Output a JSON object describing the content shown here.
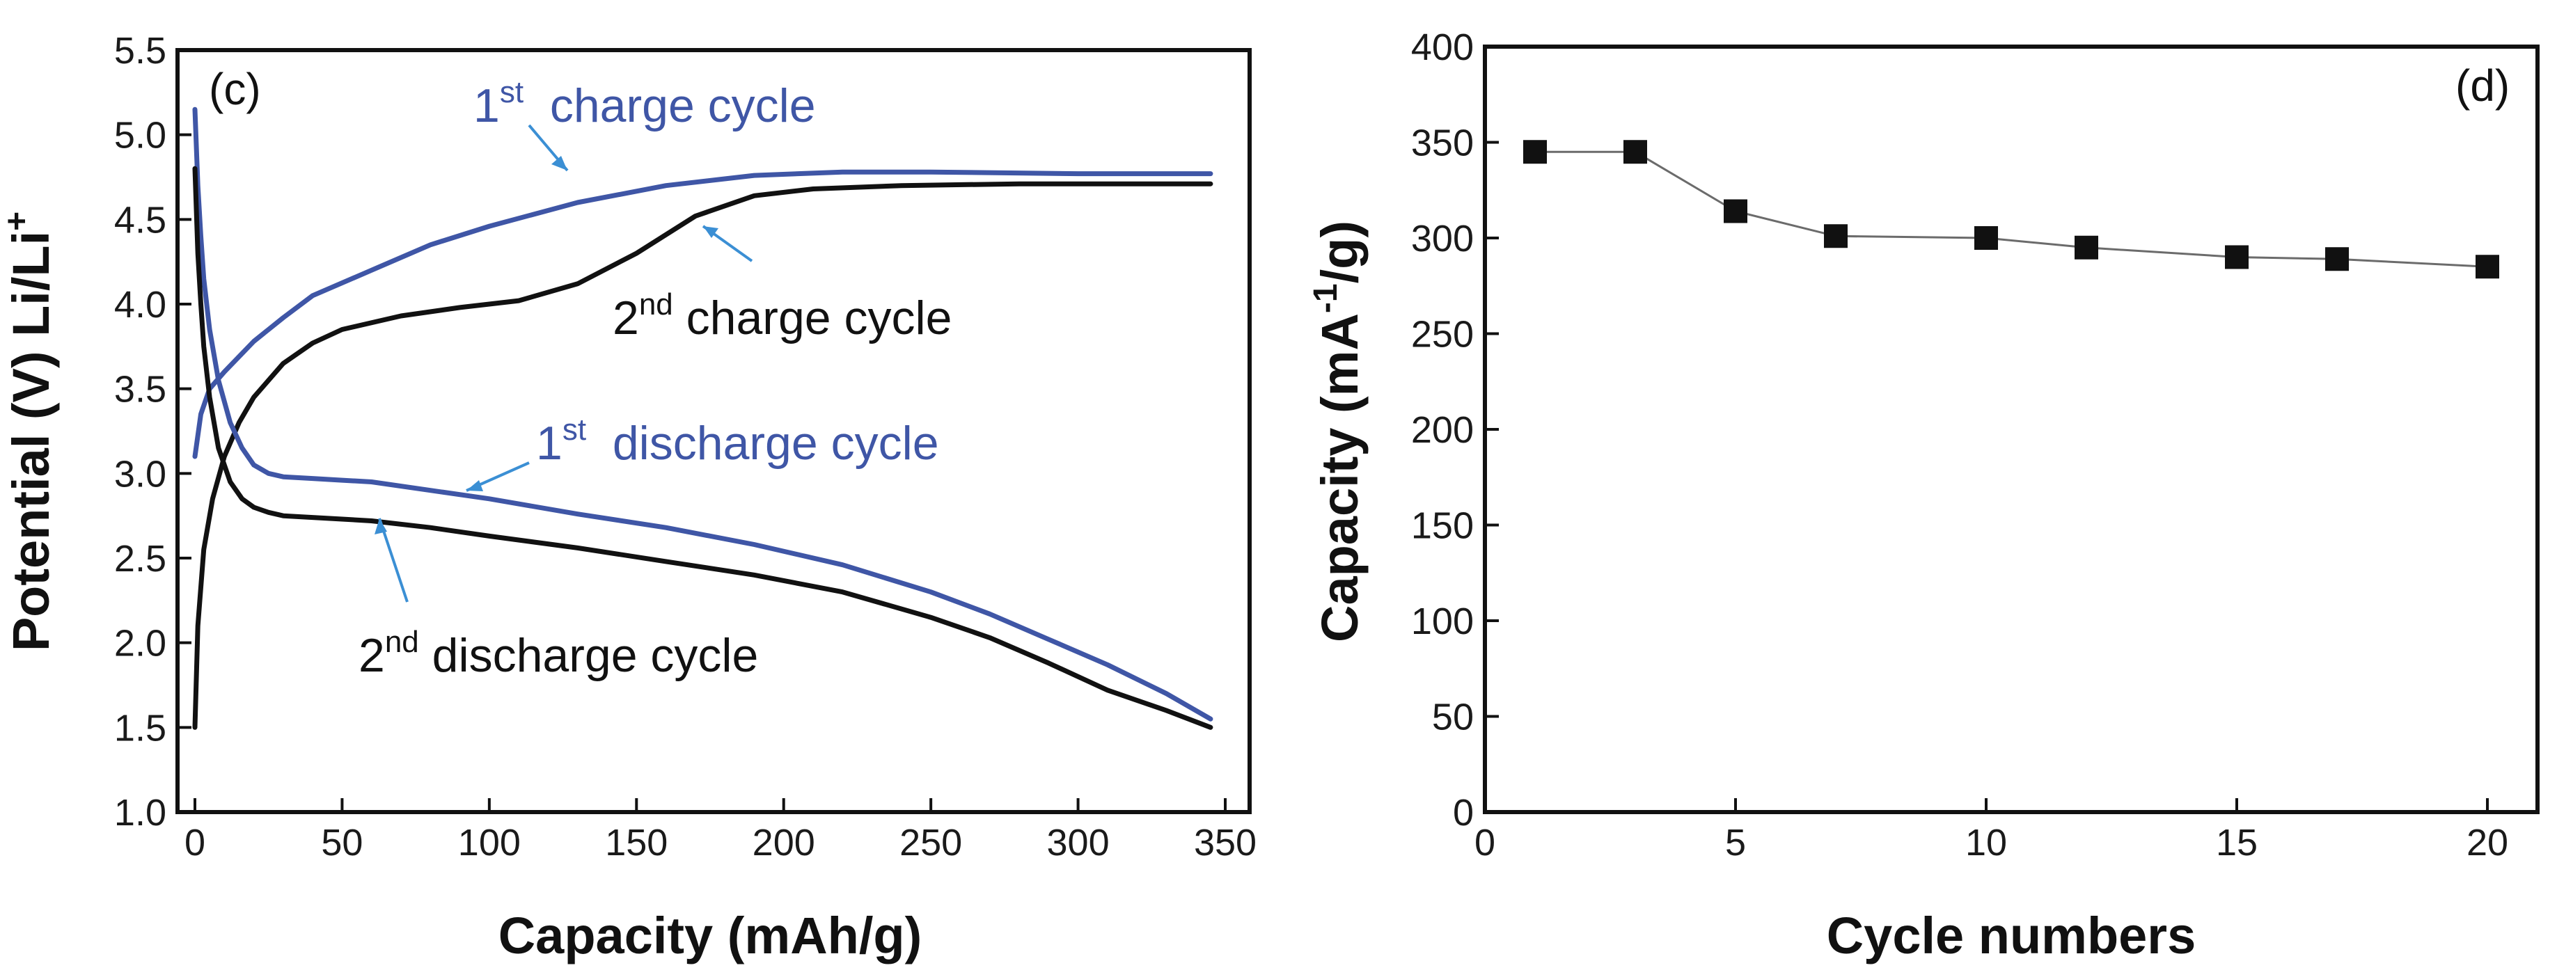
{
  "figure": {
    "colors": {
      "blue": "#3f56a6",
      "black": "#111111",
      "arrow": "#3b8fd4",
      "marker": "#111111",
      "connector": "#6b6b6b"
    }
  },
  "chart_data": [
    {
      "id": "c",
      "panel_label": "(c)",
      "type": "line",
      "xlabel": "Capacity (mAh/g)",
      "ylabel": "Potential (V) Li/Li",
      "ylabel_sup": "+",
      "xlim": [
        0,
        350
      ],
      "ylim": [
        1.0,
        5.5
      ],
      "x_ticks": [
        "0",
        "50",
        "100",
        "150",
        "200",
        "250",
        "300",
        "350"
      ],
      "y_ticks": [
        "1.0",
        "1.5",
        "2.0",
        "2.5",
        "3.0",
        "3.5",
        "4.0",
        "4.5",
        "5.0",
        "5.5"
      ],
      "series": [
        {
          "name": "1st charge cycle",
          "color": "#3f56a6",
          "x": [
            0,
            2,
            5,
            10,
            20,
            30,
            40,
            60,
            80,
            100,
            130,
            160,
            190,
            220,
            250,
            300,
            345
          ],
          "y": [
            3.1,
            3.35,
            3.5,
            3.6,
            3.78,
            3.92,
            4.05,
            4.2,
            4.35,
            4.46,
            4.6,
            4.7,
            4.76,
            4.78,
            4.78,
            4.77,
            4.77
          ]
        },
        {
          "name": "2nd charge cycle",
          "color": "#111111",
          "x": [
            0,
            1,
            3,
            6,
            10,
            15,
            20,
            30,
            40,
            50,
            70,
            90,
            110,
            130,
            150,
            170,
            190,
            210,
            240,
            280,
            345
          ],
          "y": [
            1.5,
            2.1,
            2.55,
            2.85,
            3.1,
            3.3,
            3.45,
            3.65,
            3.77,
            3.85,
            3.93,
            3.98,
            4.02,
            4.12,
            4.3,
            4.52,
            4.64,
            4.68,
            4.7,
            4.71,
            4.71
          ]
        },
        {
          "name": "1st discharge cycle",
          "color": "#3f56a6",
          "x": [
            0,
            1,
            2,
            3,
            5,
            8,
            12,
            16,
            20,
            25,
            30,
            40,
            50,
            60,
            80,
            100,
            130,
            160,
            190,
            220,
            250,
            270,
            290,
            310,
            330,
            345
          ],
          "y": [
            5.15,
            4.7,
            4.4,
            4.15,
            3.85,
            3.55,
            3.3,
            3.15,
            3.05,
            3.0,
            2.98,
            2.97,
            2.96,
            2.95,
            2.9,
            2.85,
            2.76,
            2.68,
            2.58,
            2.46,
            2.3,
            2.17,
            2.02,
            1.87,
            1.7,
            1.55
          ]
        },
        {
          "name": "2nd discharge cycle",
          "color": "#111111",
          "x": [
            0,
            1,
            2,
            3,
            5,
            8,
            12,
            16,
            20,
            25,
            30,
            40,
            50,
            60,
            80,
            100,
            130,
            160,
            190,
            220,
            250,
            270,
            290,
            310,
            330,
            345
          ],
          "y": [
            4.8,
            4.3,
            4.0,
            3.75,
            3.45,
            3.15,
            2.95,
            2.85,
            2.8,
            2.77,
            2.75,
            2.74,
            2.73,
            2.72,
            2.68,
            2.63,
            2.56,
            2.48,
            2.4,
            2.3,
            2.15,
            2.03,
            1.88,
            1.72,
            1.6,
            1.5
          ]
        }
      ],
      "annotations": [
        {
          "id": "c1",
          "main": "1",
          "sup": "st",
          "rest": "  charge cycle",
          "color": "#3f56a6"
        },
        {
          "id": "c2",
          "main": "2",
          "sup": "nd",
          "rest": " charge cycle",
          "color": "#111111"
        },
        {
          "id": "d1",
          "main": "1",
          "sup": "st",
          "rest": "  discharge cycle",
          "color": "#3f56a6"
        },
        {
          "id": "d2",
          "main": "2",
          "sup": "nd",
          "rest": " discharge cycle",
          "color": "#111111"
        }
      ]
    },
    {
      "id": "d",
      "panel_label": "(d)",
      "type": "scatter",
      "xlabel": "Cycle numbers",
      "ylabel": "Capacity (mA",
      "ylabel_sup": "-1",
      "ylabel_end": "/g)",
      "xlim": [
        0,
        21
      ],
      "ylim": [
        0,
        400
      ],
      "x_ticks": [
        "0",
        "5",
        "10",
        "15",
        "20"
      ],
      "y_ticks": [
        "0",
        "50",
        "100",
        "150",
        "200",
        "250",
        "300",
        "350",
        "400"
      ],
      "series": [
        {
          "name": "Capacity",
          "marker": "square",
          "x": [
            1,
            3,
            5,
            7,
            10,
            12,
            15,
            17,
            20
          ],
          "y": [
            345,
            345,
            314,
            301,
            300,
            295,
            290,
            289,
            285
          ]
        }
      ]
    }
  ]
}
